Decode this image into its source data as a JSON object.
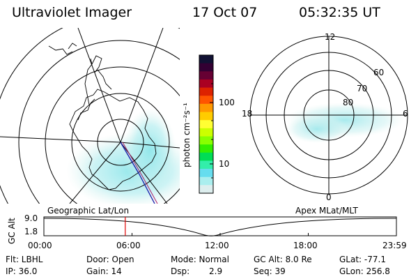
{
  "header": {
    "title": "Ultraviolet Imager",
    "date": "17 Oct 07",
    "time": "05:32:35 UT"
  },
  "geo_panel": {
    "label": "Geographic Lat/Lon"
  },
  "apex_panel": {
    "label": "Apex MLat/MLT",
    "mlt_labels": [
      "12",
      "18",
      "6",
      "0"
    ],
    "lat_labels": [
      "60",
      "70",
      "80"
    ]
  },
  "colorbar": {
    "unit_label": "photon cm⁻²s⁻¹",
    "tick_labels": [
      "100",
      "10"
    ],
    "colors": [
      "#111133",
      "#330033",
      "#660033",
      "#aa0022",
      "#dd2200",
      "#ff5500",
      "#ff9900",
      "#ffcc00",
      "#ffff33",
      "#ccff00",
      "#88ff00",
      "#33ee00",
      "#00dd55",
      "#33eeaa",
      "#66ddee",
      "#aaeeee",
      "#ddeeee"
    ]
  },
  "altitude_plot": {
    "ylabel": "GC Alt",
    "y_ticks": [
      "9.0",
      "1.8"
    ],
    "x_ticks": [
      "00:00",
      "06:00",
      "12:00",
      "18:00",
      "23:59"
    ],
    "current_time_hours": 5.54
  },
  "footer": {
    "flt": "Flt: LBHL",
    "ip": "IP: 36.0",
    "door": "Door: Open",
    "gain": "Gain: 14",
    "mode": "Mode: Normal",
    "dsp_label": "Dsp:",
    "dsp_value": "2.9",
    "gcalt": "GC Alt: 8.0 Re",
    "seq": "Seq: 39",
    "glat": "GLat: -77.1",
    "glon": "GLon: 256.8"
  }
}
